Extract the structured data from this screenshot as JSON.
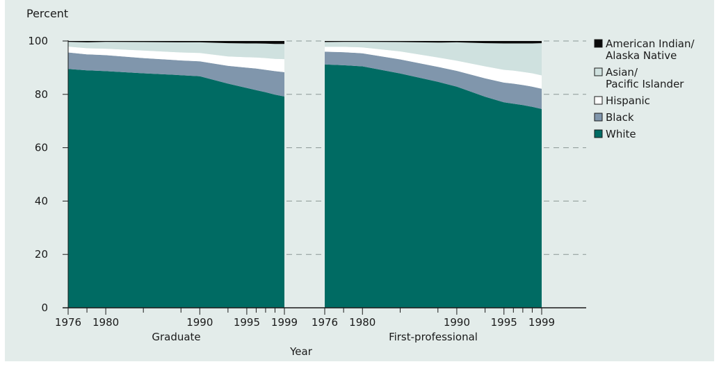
{
  "chart_data": {
    "type": "area",
    "y_axis_label": "Percent",
    "x_axis_label": "Year",
    "ylim": [
      0,
      100
    ],
    "y_ticks": [
      0,
      20,
      40,
      60,
      80,
      100
    ],
    "grid": "dashed horizontal guides at y ticks",
    "legend_position": "right",
    "stack_order": [
      "White",
      "Black",
      "Hispanic",
      "Asian/ Pacific Islander",
      "American Indian/ Alaska Native"
    ],
    "legend": [
      {
        "label_lines": [
          "American Indian/",
          "Alaska Native"
        ],
        "color": "#0a0a0a"
      },
      {
        "label_lines": [
          "Asian/",
          "Pacific Islander"
        ],
        "color": "#cfe1df"
      },
      {
        "label_lines": [
          "Hispanic"
        ],
        "color": "#ffffff"
      },
      {
        "label_lines": [
          "Black"
        ],
        "color": "#8096ac"
      },
      {
        "label_lines": [
          "White"
        ],
        "color": "#006b63"
      }
    ],
    "panels": [
      {
        "name": "Graduate",
        "x": [
          1976,
          1978,
          1980,
          1984,
          1988,
          1990,
          1993,
          1995,
          1996,
          1997,
          1998,
          1999
        ],
        "tick_labels": [
          "1976",
          "1980",
          "1990",
          "1995",
          "1999"
        ],
        "series": [
          {
            "name": "White",
            "values": [
              89.5,
              89.0,
              88.7,
              87.9,
              87.2,
              86.8,
              84.0,
              82.4,
              81.6,
              80.8,
              79.9,
              79.2
            ]
          },
          {
            "name": "Black",
            "values": [
              6.2,
              6.0,
              6.0,
              5.7,
              5.5,
              5.6,
              6.7,
              7.6,
              8.1,
              8.4,
              8.8,
              9.1
            ]
          },
          {
            "name": "Hispanic",
            "values": [
              2.2,
              2.3,
              2.4,
              2.8,
              3.0,
              3.1,
              3.5,
              3.9,
              4.1,
              4.4,
              4.6,
              4.9
            ]
          },
          {
            "name": "Asian/ Pacific Islander",
            "values": [
              1.8,
              2.2,
              2.6,
              3.2,
              3.8,
              4.0,
              5.0,
              5.2,
              5.3,
              5.4,
              5.6,
              5.7
            ]
          },
          {
            "name": "American Indian/ Alaska Native",
            "values": [
              0.3,
              0.5,
              0.3,
              0.4,
              0.5,
              0.5,
              0.8,
              0.9,
              0.9,
              1.0,
              1.1,
              1.1
            ]
          }
        ]
      },
      {
        "name": "First-professional",
        "x": [
          1976,
          1978,
          1980,
          1984,
          1988,
          1990,
          1993,
          1995,
          1996,
          1997,
          1998,
          1999
        ],
        "tick_labels": [
          "1976",
          "1980",
          "1990",
          "1995",
          "1999"
        ],
        "series": [
          {
            "name": "White",
            "values": [
              91.2,
              90.9,
              90.5,
              87.8,
              84.7,
              82.9,
              79.1,
              77.0,
              76.5,
              76.0,
              75.3,
              74.5
            ]
          },
          {
            "name": "Black",
            "values": [
              4.8,
              4.9,
              4.9,
              5.3,
              5.6,
              5.9,
              6.9,
              7.4,
              7.5,
              7.5,
              7.6,
              7.6
            ]
          },
          {
            "name": "Hispanic",
            "values": [
              1.8,
              2.0,
              2.2,
              3.0,
              3.5,
              3.8,
              4.5,
              4.8,
              4.9,
              4.9,
              5.0,
              5.0
            ]
          },
          {
            "name": "Asian/ Pacific Islander",
            "values": [
              1.8,
              1.9,
              2.1,
              3.5,
              5.6,
              6.9,
              8.7,
              9.9,
              10.2,
              10.7,
              11.2,
              12.1
            ]
          },
          {
            "name": "American Indian/ Alaska Native",
            "values": [
              0.4,
              0.3,
              0.3,
              0.4,
              0.6,
              0.5,
              0.8,
              0.9,
              0.9,
              0.9,
              0.9,
              0.8
            ]
          }
        ]
      }
    ]
  }
}
